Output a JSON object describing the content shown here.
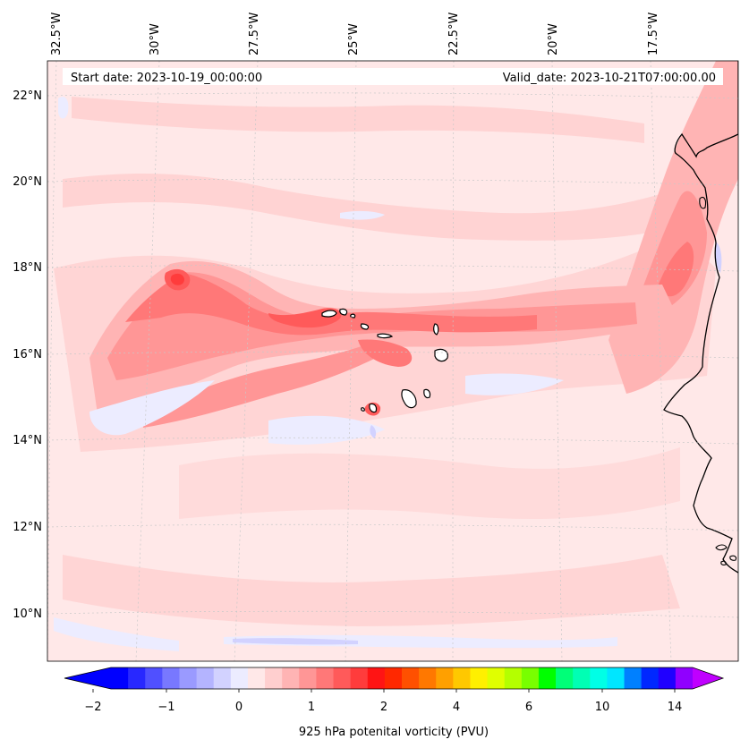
{
  "map": {
    "longitude_labels": [
      "32.5°W",
      "30°W",
      "27.5°W",
      "25°W",
      "22.5°W",
      "20°W",
      "17.5°W"
    ],
    "latitude_labels": [
      "22°N",
      "20°N",
      "18°N",
      "16°N",
      "14°N",
      "12°N",
      "10°N"
    ],
    "start_date": "Start date: 2023-10-19_00:00:00",
    "valid_date": "Valid_date: 2023-10-21T07:00:00.00",
    "features": [
      "coastline-africa",
      "cape-verde-islands",
      "graticule"
    ]
  },
  "colorbar": {
    "label": "925 hPa potenital vorticity (PVU)",
    "tick_labels": [
      "−2",
      "−1",
      "0",
      "1",
      "2",
      "4",
      "6",
      "10",
      "14"
    ],
    "colors": [
      "#0000ff",
      "#2828ff",
      "#5050ff",
      "#7878ff",
      "#9a9aff",
      "#b4b4ff",
      "#d2d2ff",
      "#ececff",
      "#ffe8e8",
      "#ffcfcf",
      "#ffb4b4",
      "#ff9696",
      "#ff7878",
      "#ff5a5a",
      "#ff3c3c",
      "#ff1414",
      "#ff2800",
      "#ff5000",
      "#ff7800",
      "#ffa000",
      "#ffc800",
      "#fff000",
      "#e0ff00",
      "#b4ff00",
      "#78ff00",
      "#00ff00",
      "#00ff78",
      "#00ffb4",
      "#00ffe6",
      "#00e6ff",
      "#0080ff",
      "#0028ff",
      "#2000ff",
      "#9000ff"
    ],
    "under_color": "#0000ff",
    "over_color": "#c000ff"
  },
  "field_colors": {
    "background": "#ffe8e8",
    "light": "#ffcfcf",
    "mid": "#ffb4b4",
    "strong": "#ff9696",
    "stronger": "#ff7878",
    "intense": "#ff5a5a",
    "peak": "#ff3c3c",
    "negative": "#ececff",
    "negative2": "#d2d2ff"
  }
}
